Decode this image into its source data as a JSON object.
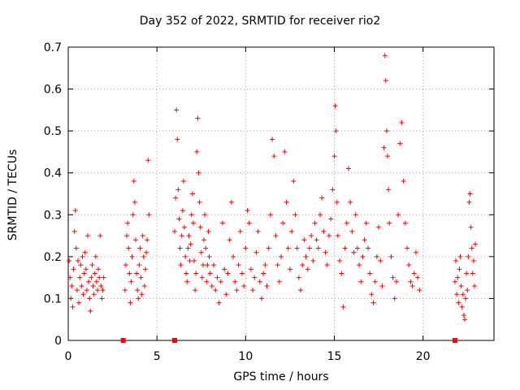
{
  "chart_data": {
    "type": "scatter",
    "title": "Day 352 of 2022, SRMTID for receiver rio2",
    "xlabel": "GPS time / hours",
    "ylabel": "SRMTID / TECUs",
    "xlim": [
      0,
      24
    ],
    "ylim": [
      0,
      0.7
    ],
    "xticks": [
      0,
      5,
      10,
      15,
      20
    ],
    "yticks": [
      0,
      0.1,
      0.2,
      0.3,
      0.4,
      0.5,
      0.6,
      0.7
    ],
    "grid": true,
    "marker": "+",
    "color": "#ff0000",
    "zero_markers_x": [
      3.1,
      6.0,
      21.8
    ],
    "series": [
      {
        "name": "SRMTID",
        "points": [
          [
            0.05,
            0.19
          ],
          [
            0.1,
            0.15
          ],
          [
            0.15,
            0.1
          ],
          [
            0.2,
            0.13
          ],
          [
            0.25,
            0.08
          ],
          [
            0.3,
            0.17
          ],
          [
            0.35,
            0.26
          ],
          [
            0.4,
            0.31
          ],
          [
            0.45,
            0.22
          ],
          [
            0.5,
            0.12
          ],
          [
            0.55,
            0.19
          ],
          [
            0.6,
            0.09
          ],
          [
            0.65,
            0.15
          ],
          [
            0.7,
            0.18
          ],
          [
            0.75,
            0.13
          ],
          [
            0.8,
            0.2
          ],
          [
            0.85,
            0.11
          ],
          [
            0.9,
            0.16
          ],
          [
            0.95,
            0.21
          ],
          [
            1.0,
            0.17
          ],
          [
            1.05,
            0.12
          ],
          [
            1.1,
            0.25
          ],
          [
            1.15,
            0.14
          ],
          [
            1.2,
            0.1
          ],
          [
            1.25,
            0.07
          ],
          [
            1.3,
            0.15
          ],
          [
            1.35,
            0.18
          ],
          [
            1.4,
            0.13
          ],
          [
            1.45,
            0.11
          ],
          [
            1.5,
            0.16
          ],
          [
            1.55,
            0.2
          ],
          [
            1.6,
            0.14
          ],
          [
            1.65,
            0.12
          ],
          [
            1.7,
            0.17
          ],
          [
            1.75,
            0.15
          ],
          [
            1.8,
            0.25
          ],
          [
            1.85,
            0.13
          ],
          [
            1.9,
            0.1
          ],
          [
            1.95,
            0.12
          ],
          [
            2.0,
            0.15
          ],
          [
            3.2,
            0.12
          ],
          [
            3.25,
            0.18
          ],
          [
            3.3,
            0.25
          ],
          [
            3.35,
            0.28
          ],
          [
            3.4,
            0.22
          ],
          [
            3.45,
            0.16
          ],
          [
            3.5,
            0.09
          ],
          [
            3.55,
            0.14
          ],
          [
            3.6,
            0.2
          ],
          [
            3.65,
            0.3
          ],
          [
            3.7,
            0.38
          ],
          [
            3.75,
            0.33
          ],
          [
            3.8,
            0.24
          ],
          [
            3.85,
            0.16
          ],
          [
            3.9,
            0.12
          ],
          [
            3.95,
            0.1
          ],
          [
            4.0,
            0.18
          ],
          [
            4.05,
            0.22
          ],
          [
            4.1,
            0.15
          ],
          [
            4.15,
            0.11
          ],
          [
            4.2,
            0.25
          ],
          [
            4.25,
            0.2
          ],
          [
            4.3,
            0.13
          ],
          [
            4.35,
            0.17
          ],
          [
            4.4,
            0.21
          ],
          [
            4.45,
            0.24
          ],
          [
            4.5,
            0.43
          ],
          [
            4.55,
            0.3
          ],
          [
            6.0,
            0.26
          ],
          [
            6.05,
            0.34
          ],
          [
            6.1,
            0.55
          ],
          [
            6.15,
            0.48
          ],
          [
            6.2,
            0.36
          ],
          [
            6.25,
            0.29
          ],
          [
            6.3,
            0.22
          ],
          [
            6.35,
            0.18
          ],
          [
            6.4,
            0.25
          ],
          [
            6.45,
            0.31
          ],
          [
            6.5,
            0.38
          ],
          [
            6.55,
            0.27
          ],
          [
            6.6,
            0.2
          ],
          [
            6.65,
            0.16
          ],
          [
            6.7,
            0.14
          ],
          [
            6.75,
            0.22
          ],
          [
            6.8,
            0.25
          ],
          [
            6.85,
            0.19
          ],
          [
            6.9,
            0.23
          ],
          [
            6.95,
            0.3
          ],
          [
            7.0,
            0.35
          ],
          [
            7.05,
            0.28
          ],
          [
            7.1,
            0.19
          ],
          [
            7.15,
            0.12
          ],
          [
            7.2,
            0.16
          ],
          [
            7.25,
            0.45
          ],
          [
            7.3,
            0.53
          ],
          [
            7.35,
            0.4
          ],
          [
            7.4,
            0.33
          ],
          [
            7.45,
            0.27
          ],
          [
            7.5,
            0.21
          ],
          [
            7.55,
            0.15
          ],
          [
            7.6,
            0.18
          ],
          [
            7.65,
            0.24
          ],
          [
            7.7,
            0.3
          ],
          [
            7.75,
            0.22
          ],
          [
            7.8,
            0.14
          ],
          [
            7.85,
            0.18
          ],
          [
            7.9,
            0.26
          ],
          [
            7.95,
            0.2
          ],
          [
            8.0,
            0.16
          ],
          [
            8.1,
            0.13
          ],
          [
            8.2,
            0.18
          ],
          [
            8.3,
            0.12
          ],
          [
            8.4,
            0.15
          ],
          [
            8.5,
            0.09
          ],
          [
            8.6,
            0.14
          ],
          [
            8.7,
            0.28
          ],
          [
            8.8,
            0.17
          ],
          [
            8.9,
            0.11
          ],
          [
            9.0,
            0.16
          ],
          [
            9.1,
            0.24
          ],
          [
            9.2,
            0.33
          ],
          [
            9.3,
            0.2
          ],
          [
            9.4,
            0.14
          ],
          [
            9.5,
            0.12
          ],
          [
            9.6,
            0.18
          ],
          [
            9.7,
            0.26
          ],
          [
            9.8,
            0.16
          ],
          [
            9.9,
            0.13
          ],
          [
            10.0,
            0.22
          ],
          [
            10.1,
            0.31
          ],
          [
            10.2,
            0.28
          ],
          [
            10.3,
            0.17
          ],
          [
            10.4,
            0.12
          ],
          [
            10.5,
            0.15
          ],
          [
            10.6,
            0.21
          ],
          [
            10.7,
            0.26
          ],
          [
            10.8,
            0.14
          ],
          [
            10.9,
            0.1
          ],
          [
            11.0,
            0.16
          ],
          [
            11.1,
            0.18
          ],
          [
            11.2,
            0.13
          ],
          [
            11.3,
            0.22
          ],
          [
            11.4,
            0.3
          ],
          [
            11.5,
            0.48
          ],
          [
            11.6,
            0.44
          ],
          [
            11.7,
            0.25
          ],
          [
            11.8,
            0.18
          ],
          [
            11.9,
            0.14
          ],
          [
            12.0,
            0.2
          ],
          [
            12.1,
            0.28
          ],
          [
            12.2,
            0.45
          ],
          [
            12.3,
            0.33
          ],
          [
            12.4,
            0.22
          ],
          [
            12.5,
            0.17
          ],
          [
            12.6,
            0.26
          ],
          [
            12.7,
            0.38
          ],
          [
            12.8,
            0.3
          ],
          [
            12.9,
            0.22
          ],
          [
            13.0,
            0.15
          ],
          [
            13.1,
            0.12
          ],
          [
            13.2,
            0.18
          ],
          [
            13.3,
            0.24
          ],
          [
            13.4,
            0.2
          ],
          [
            13.5,
            0.17
          ],
          [
            13.6,
            0.22
          ],
          [
            13.7,
            0.25
          ],
          [
            13.8,
            0.19
          ],
          [
            13.9,
            0.28
          ],
          [
            14.0,
            0.24
          ],
          [
            14.1,
            0.22
          ],
          [
            14.2,
            0.3
          ],
          [
            14.3,
            0.34
          ],
          [
            14.4,
            0.26
          ],
          [
            14.5,
            0.21
          ],
          [
            14.6,
            0.18
          ],
          [
            14.7,
            0.25
          ],
          [
            14.8,
            0.29
          ],
          [
            14.9,
            0.36
          ],
          [
            15.0,
            0.44
          ],
          [
            15.05,
            0.56
          ],
          [
            15.1,
            0.5
          ],
          [
            15.15,
            0.33
          ],
          [
            15.2,
            0.25
          ],
          [
            15.3,
            0.19
          ],
          [
            15.4,
            0.16
          ],
          [
            15.5,
            0.08
          ],
          [
            15.6,
            0.22
          ],
          [
            15.7,
            0.28
          ],
          [
            15.8,
            0.41
          ],
          [
            15.9,
            0.33
          ],
          [
            16.0,
            0.26
          ],
          [
            16.1,
            0.21
          ],
          [
            16.2,
            0.3
          ],
          [
            16.3,
            0.22
          ],
          [
            16.4,
            0.18
          ],
          [
            16.5,
            0.14
          ],
          [
            16.6,
            0.2
          ],
          [
            16.7,
            0.24
          ],
          [
            16.8,
            0.28
          ],
          [
            16.9,
            0.22
          ],
          [
            17.0,
            0.16
          ],
          [
            17.1,
            0.11
          ],
          [
            17.2,
            0.09
          ],
          [
            17.3,
            0.14
          ],
          [
            17.4,
            0.2
          ],
          [
            17.5,
            0.27
          ],
          [
            17.6,
            0.19
          ],
          [
            17.7,
            0.13
          ],
          [
            17.8,
            0.46
          ],
          [
            17.85,
            0.68
          ],
          [
            17.9,
            0.62
          ],
          [
            17.95,
            0.5
          ],
          [
            18.0,
            0.44
          ],
          [
            18.05,
            0.36
          ],
          [
            18.1,
            0.28
          ],
          [
            18.2,
            0.2
          ],
          [
            18.3,
            0.15
          ],
          [
            18.4,
            0.1
          ],
          [
            18.5,
            0.14
          ],
          [
            18.6,
            0.3
          ],
          [
            18.7,
            0.47
          ],
          [
            18.8,
            0.52
          ],
          [
            18.9,
            0.38
          ],
          [
            19.0,
            0.28
          ],
          [
            19.1,
            0.22
          ],
          [
            19.2,
            0.18
          ],
          [
            19.3,
            0.14
          ],
          [
            19.4,
            0.13
          ],
          [
            19.5,
            0.16
          ],
          [
            19.6,
            0.21
          ],
          [
            19.7,
            0.15
          ],
          [
            19.8,
            0.12
          ],
          [
            21.8,
            0.14
          ],
          [
            21.85,
            0.19
          ],
          [
            21.9,
            0.11
          ],
          [
            21.95,
            0.15
          ],
          [
            22.0,
            0.09
          ],
          [
            22.05,
            0.17
          ],
          [
            22.1,
            0.2
          ],
          [
            22.15,
            0.13
          ],
          [
            22.2,
            0.08
          ],
          [
            22.25,
            0.11
          ],
          [
            22.3,
            0.06
          ],
          [
            22.35,
            0.05
          ],
          [
            22.4,
            0.1
          ],
          [
            22.45,
            0.16
          ],
          [
            22.5,
            0.12
          ],
          [
            22.55,
            0.2
          ],
          [
            22.6,
            0.33
          ],
          [
            22.65,
            0.35
          ],
          [
            22.7,
            0.27
          ],
          [
            22.75,
            0.22
          ],
          [
            22.8,
            0.16
          ],
          [
            22.85,
            0.19
          ],
          [
            22.9,
            0.13
          ],
          [
            22.95,
            0.23
          ]
        ]
      }
    ]
  }
}
